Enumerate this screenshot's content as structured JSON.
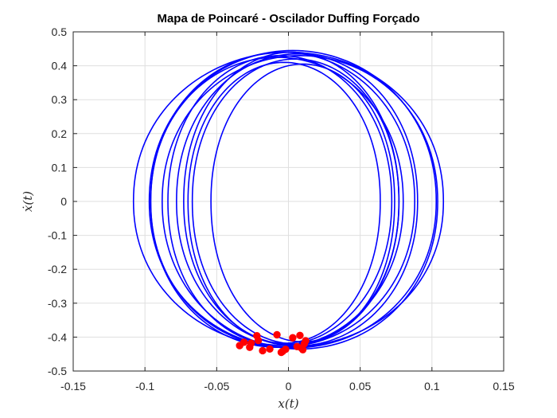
{
  "chart_data": {
    "type": "line",
    "title": "Mapa de Poincaré - Oscilador Duffing Forçado",
    "xlabel": "x(t)",
    "ylabel": "ẋ(t)",
    "xlim": [
      -0.15,
      0.15
    ],
    "ylim": [
      -0.5,
      0.5
    ],
    "xticks": [
      -0.15,
      -0.1,
      -0.05,
      0,
      0.05,
      0.1,
      0.15
    ],
    "xtick_labels": [
      "-0.15",
      "-0.1",
      "-0.05",
      "0",
      "0.05",
      "0.1",
      "0.15"
    ],
    "yticks": [
      -0.5,
      -0.4,
      -0.3,
      -0.2,
      -0.1,
      0,
      0.1,
      0.2,
      0.3,
      0.4,
      0.5
    ],
    "ytick_labels": [
      "-0.5",
      "-0.4",
      "-0.3",
      "-0.2",
      "-0.1",
      "0",
      "0.1",
      "0.2",
      "0.3",
      "0.4",
      "0.5"
    ],
    "grid": true,
    "series": [
      {
        "kind": "trajectory",
        "color": "#0000ff",
        "loops": [
          {
            "cx": 0.0,
            "ax": 0.108,
            "ay_top": 0.44,
            "ay_bot": 0.43
          },
          {
            "cx": 0.003,
            "ax": 0.1,
            "ay_top": 0.445,
            "ay_bot": 0.432
          },
          {
            "cx": -0.004,
            "ax": 0.092,
            "ay_top": 0.44,
            "ay_bot": 0.428
          },
          {
            "cx": 0.006,
            "ax": 0.084,
            "ay_top": 0.435,
            "ay_bot": 0.426
          },
          {
            "cx": -0.006,
            "ax": 0.078,
            "ay_top": 0.43,
            "ay_bot": 0.424
          },
          {
            "cx": 0.005,
            "ax": 0.072,
            "ay_top": 0.42,
            "ay_bot": 0.42
          },
          {
            "cx": -0.003,
            "ax": 0.067,
            "ay_top": 0.41,
            "ay_bot": 0.418
          },
          {
            "cx": 0.008,
            "ax": 0.096,
            "ay_top": 0.43,
            "ay_bot": 0.435
          },
          {
            "cx": -0.008,
            "ax": 0.088,
            "ay_top": 0.425,
            "ay_bot": 0.43
          },
          {
            "cx": 0.002,
            "ax": 0.075,
            "ay_top": 0.44,
            "ay_bot": 0.422
          },
          {
            "cx": 0.01,
            "ax": 0.064,
            "ay_top": 0.405,
            "ay_bot": 0.414
          }
        ]
      },
      {
        "kind": "poincare",
        "color": "#ff0000",
        "points": [
          [
            -0.034,
            -0.425
          ],
          [
            -0.031,
            -0.415
          ],
          [
            -0.027,
            -0.43
          ],
          [
            -0.026,
            -0.418
          ],
          [
            -0.022,
            -0.396
          ],
          [
            -0.021,
            -0.41
          ],
          [
            -0.018,
            -0.44
          ],
          [
            -0.013,
            -0.435
          ],
          [
            -0.008,
            -0.393
          ],
          [
            -0.005,
            -0.445
          ],
          [
            -0.004,
            -0.442
          ],
          [
            -0.002,
            -0.436
          ],
          [
            0.003,
            -0.402
          ],
          [
            0.006,
            -0.428
          ],
          [
            0.008,
            -0.395
          ],
          [
            0.009,
            -0.432
          ],
          [
            0.011,
            -0.42
          ],
          [
            0.012,
            -0.411
          ],
          [
            0.01,
            -0.437
          ]
        ]
      }
    ]
  }
}
